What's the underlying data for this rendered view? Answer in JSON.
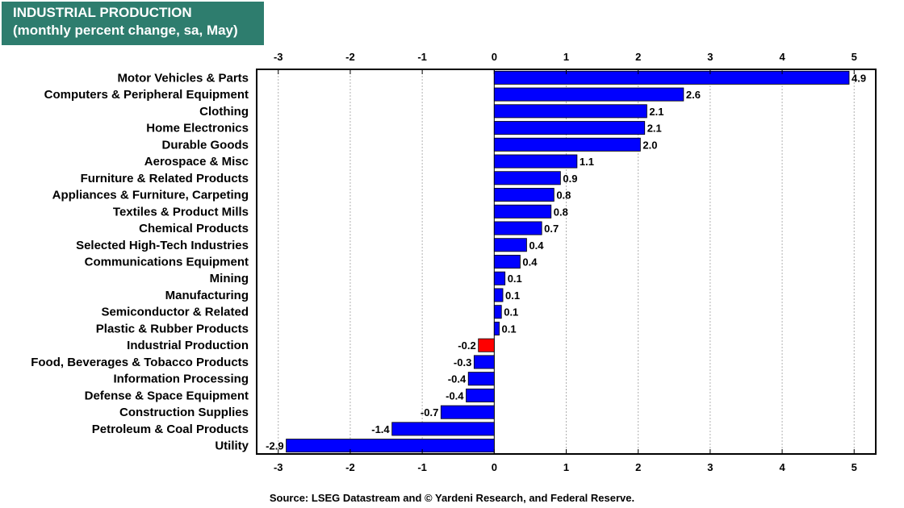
{
  "header": {
    "title_line1": "INDUSTRIAL PRODUCTION",
    "title_line2": "(monthly percent change, sa,  May)"
  },
  "footer": {
    "source": "Source: LSEG Datastream and © Yardeni Research, and Federal Reserve."
  },
  "colors": {
    "bar": "#0000ff",
    "highlight": "#ff0000",
    "title_bg": "#2e7d6e"
  },
  "chart_data": {
    "type": "bar",
    "orientation": "horizontal",
    "title": "INDUSTRIAL PRODUCTION (monthly percent change, sa,  May)",
    "xlabel": "",
    "ylabel": "",
    "xlim": [
      -3.3,
      5.3
    ],
    "xticks": [
      -3,
      -2,
      -1,
      0,
      1,
      2,
      3,
      4,
      5
    ],
    "grid": "vertical dotted",
    "highlight_category": "Industrial Production",
    "categories": [
      "Motor Vehicles & Parts",
      "Computers & Peripheral Equipment",
      "Clothing",
      "Home Electronics",
      "Durable Goods",
      "Aerospace & Misc",
      "Furniture & Related Products",
      "Appliances & Furniture, Carpeting",
      "Textiles & Product Mills",
      "Chemical Products",
      "Selected High-Tech Industries",
      "Communications Equipment",
      "Mining ",
      "Manufacturing",
      "Semiconductor & Related",
      "Plastic & Rubber Products",
      "Industrial Production",
      "Food, Beverages & Tobacco Products",
      "Information Processing",
      "Defense & Space Equipment",
      "Construction Supplies",
      "Petroleum & Coal Products",
      "Utility"
    ],
    "values": [
      4.93,
      2.63,
      2.12,
      2.09,
      2.03,
      1.15,
      0.92,
      0.83,
      0.79,
      0.66,
      0.45,
      0.36,
      0.15,
      0.12,
      0.1,
      0.07,
      -0.22,
      -0.28,
      -0.36,
      -0.39,
      -0.74,
      -1.42,
      -2.89
    ],
    "labels": [
      "4.9",
      "2.6",
      "2.1",
      "2.1",
      "2.0",
      "1.1",
      "0.9",
      "0.8",
      "0.8",
      "0.7",
      "0.4",
      "0.4",
      "0.1",
      "0.1",
      "0.1",
      "0.1",
      "-0.2",
      "-0.3",
      "-0.4",
      "-0.4",
      "-0.7",
      "-1.4",
      "-2.9"
    ]
  }
}
